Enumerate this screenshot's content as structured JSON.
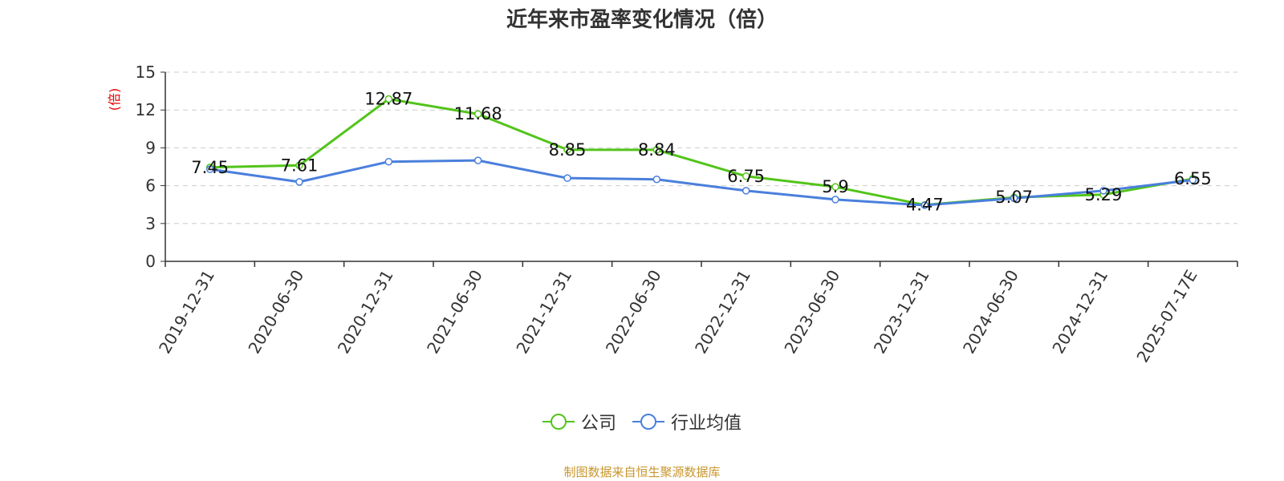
{
  "page": {
    "title": "近年来市盈率变化情况（倍）",
    "source": "制图数据来自恒生聚源数据库",
    "source_color": "#c8962e"
  },
  "chart_data": {
    "type": "line",
    "title": "近年来市盈率变化情况（倍）",
    "ylabel": "(倍)",
    "ylabel_color": "#e60000",
    "ylim": [
      0,
      15
    ],
    "yticks": [
      0,
      3,
      6,
      9,
      12,
      15
    ],
    "grid": true,
    "legend_position": "bottom",
    "categories": [
      "2019-12-31",
      "2020-06-30",
      "2020-12-31",
      "2021-06-30",
      "2021-12-31",
      "2022-06-30",
      "2022-12-31",
      "2023-06-30",
      "2023-12-31",
      "2024-06-30",
      "2024-12-31",
      "2025-07-17E"
    ],
    "series": [
      {
        "name": "公司",
        "color": "#52c41a",
        "values": [
          7.45,
          7.61,
          12.87,
          11.68,
          8.85,
          8.84,
          6.75,
          5.9,
          4.47,
          5.07,
          5.29,
          6.55
        ],
        "labels": [
          "7.45",
          "7.61",
          "12.87",
          "11.68",
          "8.85",
          "8.84",
          "6.75",
          "5.9",
          "4.47",
          "5.07",
          "5.29",
          "6.55"
        ]
      },
      {
        "name": "行业均值",
        "color": "#4a7fdc",
        "values": [
          7.3,
          6.3,
          7.9,
          8.0,
          6.6,
          6.5,
          5.6,
          4.9,
          4.45,
          5.0,
          5.6,
          6.45
        ]
      }
    ]
  }
}
